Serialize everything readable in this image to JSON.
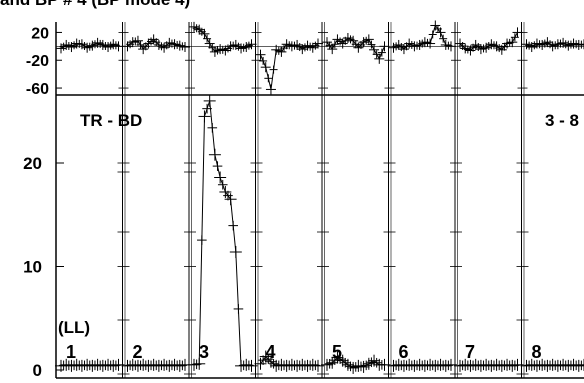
{
  "title": "and BP # 4 (BP mode 4)",
  "chart_data": {
    "type": "line",
    "panel_labels": [
      "1",
      "2",
      "3",
      "4",
      "5",
      "6",
      "7",
      "8"
    ],
    "inner_labels": {
      "left": "TR - BD",
      "right": "3 - 8",
      "units_prefix": "(LL)"
    },
    "top_axis": {
      "ticks": [
        20,
        -20,
        -60
      ],
      "labels": [
        "20",
        "-20",
        "-60"
      ],
      "ylim": [
        -70,
        35
      ]
    },
    "bottom_axis": {
      "ticks": [
        0,
        10,
        20
      ],
      "labels": [
        "0",
        "10",
        "20"
      ],
      "ylim": [
        0,
        26
      ]
    },
    "top_series": [
      {
        "panel": 1,
        "values": [
          -3,
          2,
          -1,
          4,
          3,
          -2,
          1,
          5,
          2,
          -1,
          3,
          0
        ]
      },
      {
        "panel": 2,
        "values": [
          0,
          6,
          8,
          -4,
          4,
          10,
          2,
          -2,
          5,
          3,
          1,
          -1
        ]
      },
      {
        "panel": 3,
        "values": [
          28,
          24,
          18,
          4,
          -8,
          -4,
          -6,
          0,
          2,
          -3,
          -1,
          3
        ]
      },
      {
        "panel": 4,
        "values": [
          -12,
          -30,
          -62,
          -5,
          -8,
          3,
          0,
          2,
          -4,
          1,
          -2,
          4
        ]
      },
      {
        "panel": 5,
        "values": [
          6,
          -4,
          10,
          4,
          12,
          8,
          -2,
          6,
          10,
          -5,
          -18,
          0
        ]
      },
      {
        "panel": 6,
        "values": [
          -2,
          2,
          -4,
          4,
          0,
          2,
          6,
          4,
          30,
          20,
          2,
          0
        ]
      },
      {
        "panel": 7,
        "values": [
          4,
          -3,
          -6,
          2,
          -4,
          -2,
          3,
          0,
          -5,
          4,
          6,
          20
        ]
      },
      {
        "panel": 8,
        "values": [
          3,
          -1,
          4,
          2,
          6,
          0,
          3,
          5,
          1,
          4,
          2,
          3
        ]
      }
    ],
    "bottom_series": [
      {
        "panel": 1,
        "values": [
          0.4,
          0.5,
          0.4,
          0.5,
          0.4,
          0.5,
          0.4,
          0.5,
          0.4,
          0.5,
          0.4,
          0.5
        ]
      },
      {
        "panel": 2,
        "values": [
          0.4,
          0.5,
          0.4,
          0.5,
          0.4,
          0.5,
          0.4,
          0.5,
          0.4,
          0.5,
          0.4,
          0.5
        ]
      },
      {
        "panel": 3,
        "values": [
          0.5,
          0.6,
          24.5,
          26.0,
          20.8,
          18.6,
          17.2,
          16.5,
          11.4,
          0.4,
          0.5,
          0.4
        ]
      },
      {
        "panel": 4,
        "values": [
          0.6,
          1.3,
          0.8,
          0.4,
          0.5,
          0.4,
          0.5,
          0.4,
          0.5,
          0.4,
          0.5,
          0.4
        ]
      },
      {
        "panel": 5,
        "values": [
          0.5,
          0.7,
          1.2,
          0.9,
          0.5,
          0.2,
          0.4,
          0.3,
          0.6,
          0.9,
          0.5,
          0.5
        ]
      },
      {
        "panel": 6,
        "values": [
          0.4,
          0.5,
          0.4,
          0.5,
          0.4,
          0.5,
          0.4,
          0.5,
          0.4,
          0.5,
          0.4,
          0.5
        ]
      },
      {
        "panel": 7,
        "values": [
          0.4,
          0.5,
          0.4,
          0.5,
          0.4,
          0.5,
          0.4,
          0.5,
          0.4,
          0.5,
          0.4,
          0.5
        ]
      },
      {
        "panel": 8,
        "values": [
          0.4,
          0.5,
          0.4,
          0.5,
          0.4,
          0.5,
          0.4,
          0.5,
          0.4,
          0.5,
          0.4,
          0.5
        ]
      }
    ],
    "grid": false,
    "marker": "plus",
    "line_color": "#000000",
    "marker_color": "#000000"
  }
}
